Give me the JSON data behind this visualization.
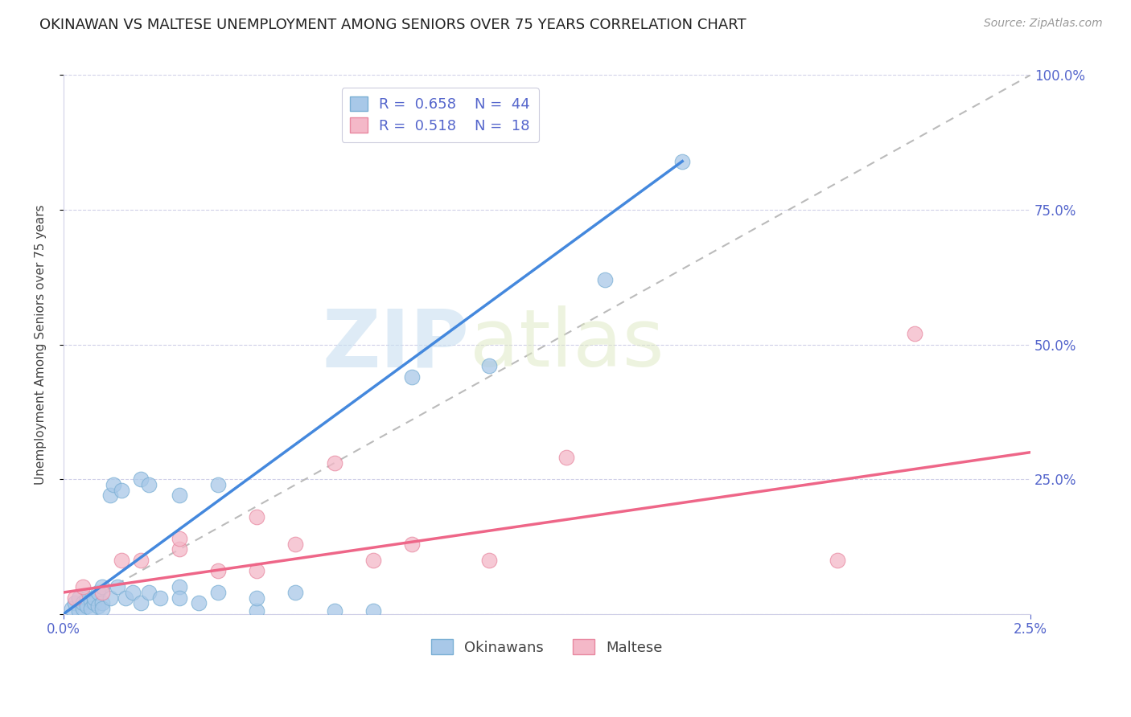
{
  "title": "OKINAWAN VS MALTESE UNEMPLOYMENT AMONG SENIORS OVER 75 YEARS CORRELATION CHART",
  "source": "Source: ZipAtlas.com",
  "ylabel": "Unemployment Among Seniors over 75 years",
  "xlim": [
    0.0,
    0.025
  ],
  "ylim": [
    0.0,
    1.0
  ],
  "right_yticks": [
    0.0,
    0.25,
    0.5,
    0.75,
    1.0
  ],
  "right_yticklabels": [
    "",
    "25.0%",
    "50.0%",
    "75.0%",
    "100.0%"
  ],
  "okinawan_color": "#a8c8e8",
  "okinawan_edge": "#7aafd4",
  "maltese_color": "#f4b8c8",
  "maltese_edge": "#e888a0",
  "okinawan_line_color": "#4488dd",
  "maltese_line_color": "#ee6688",
  "ref_line_color": "#bbbbbb",
  "legend_r_okinawan": "0.658",
  "legend_n_okinawan": "44",
  "legend_r_maltese": "0.518",
  "legend_n_maltese": "18",
  "title_fontsize": 13,
  "source_fontsize": 10,
  "axis_label_fontsize": 11,
  "tick_fontsize": 12,
  "legend_fontsize": 13,
  "watermark_zip": "ZIP",
  "watermark_atlas": "atlas",
  "background_color": "#ffffff",
  "okinawan_x": [
    0.0002,
    0.0003,
    0.0004,
    0.0004,
    0.0005,
    0.0005,
    0.0006,
    0.0006,
    0.0007,
    0.0007,
    0.0008,
    0.0008,
    0.0009,
    0.0009,
    0.001,
    0.001,
    0.001,
    0.0012,
    0.0012,
    0.0013,
    0.0014,
    0.0015,
    0.0016,
    0.0018,
    0.002,
    0.002,
    0.0022,
    0.0022,
    0.0025,
    0.003,
    0.003,
    0.003,
    0.0035,
    0.004,
    0.004,
    0.005,
    0.005,
    0.006,
    0.007,
    0.008,
    0.009,
    0.011,
    0.014,
    0.016
  ],
  "okinawan_y": [
    0.01,
    0.02,
    0.005,
    0.03,
    0.01,
    0.02,
    0.03,
    0.015,
    0.025,
    0.01,
    0.02,
    0.03,
    0.015,
    0.04,
    0.02,
    0.05,
    0.01,
    0.03,
    0.22,
    0.24,
    0.05,
    0.23,
    0.03,
    0.04,
    0.25,
    0.02,
    0.24,
    0.04,
    0.03,
    0.22,
    0.05,
    0.03,
    0.02,
    0.24,
    0.04,
    0.005,
    0.03,
    0.04,
    0.005,
    0.005,
    0.44,
    0.46,
    0.62,
    0.84
  ],
  "maltese_x": [
    0.0003,
    0.0005,
    0.001,
    0.0015,
    0.002,
    0.003,
    0.003,
    0.004,
    0.005,
    0.005,
    0.006,
    0.007,
    0.008,
    0.009,
    0.011,
    0.013,
    0.02,
    0.022
  ],
  "maltese_y": [
    0.03,
    0.05,
    0.04,
    0.1,
    0.1,
    0.12,
    0.14,
    0.08,
    0.08,
    0.18,
    0.13,
    0.28,
    0.1,
    0.13,
    0.1,
    0.29,
    0.1,
    0.52
  ],
  "ok_line_x0": 0.0,
  "ok_line_y0": 0.0,
  "ok_line_x1": 0.016,
  "ok_line_y1": 0.84,
  "mt_line_x0": 0.0,
  "mt_line_y0": 0.04,
  "mt_line_x1": 0.025,
  "mt_line_y1": 0.3
}
